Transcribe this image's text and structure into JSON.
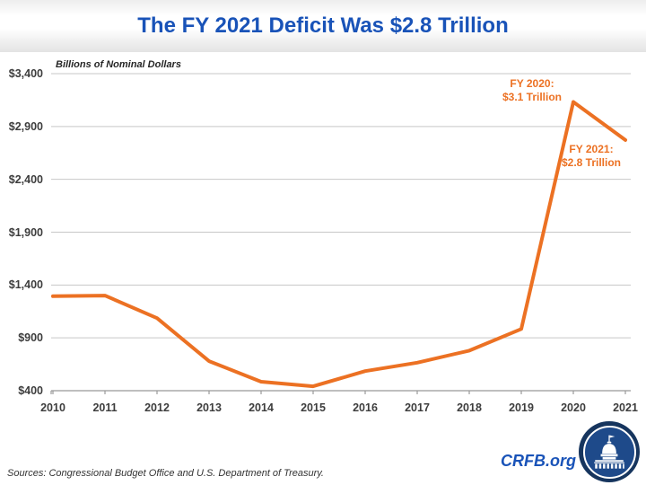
{
  "header": {
    "title": "The FY 2021 Deficit Was $2.8 Trillion"
  },
  "chart_data": {
    "type": "line",
    "title": "The FY 2021 Deficit Was $2.8 Trillion",
    "units_label": "Billions of Nominal Dollars",
    "categories": [
      "2010",
      "2011",
      "2012",
      "2013",
      "2014",
      "2015",
      "2016",
      "2017",
      "2018",
      "2019",
      "2020",
      "2021"
    ],
    "values": [
      1294,
      1300,
      1087,
      680,
      485,
      442,
      585,
      665,
      779,
      984,
      3132,
      2772
    ],
    "xlabel": "",
    "ylabel": "Billions of Nominal Dollars",
    "ylim": [
      400,
      3400
    ],
    "ytick_step": 500,
    "ytick_labels": [
      "$400",
      "$900",
      "$1,400",
      "$1,900",
      "$2,400",
      "$2,900",
      "$3,400"
    ],
    "grid": "horizontal",
    "legend": "none",
    "line_color": "#ec7123",
    "annotations": [
      {
        "target_year": "2020",
        "lines": [
          "FY 2020:",
          "$3.1 Trillion"
        ]
      },
      {
        "target_year": "2021",
        "lines": [
          "FY 2021:",
          "$2.8 Trillion"
        ]
      }
    ]
  },
  "footer": {
    "source": "Sources: Congressional Budget Office and U.S. Department of Treasury.",
    "brand": "CRFB.org"
  },
  "colors": {
    "title_blue": "#1953b8",
    "line_orange": "#ec7123",
    "gridline_gray": "#c7c7c7",
    "axis_gray": "#999999",
    "label_gray": "#3d3d3d",
    "logo_navy": "#16355e",
    "logo_blue": "#1e4a8a"
  },
  "icons": {
    "capitol": "capitol-dome-icon"
  }
}
